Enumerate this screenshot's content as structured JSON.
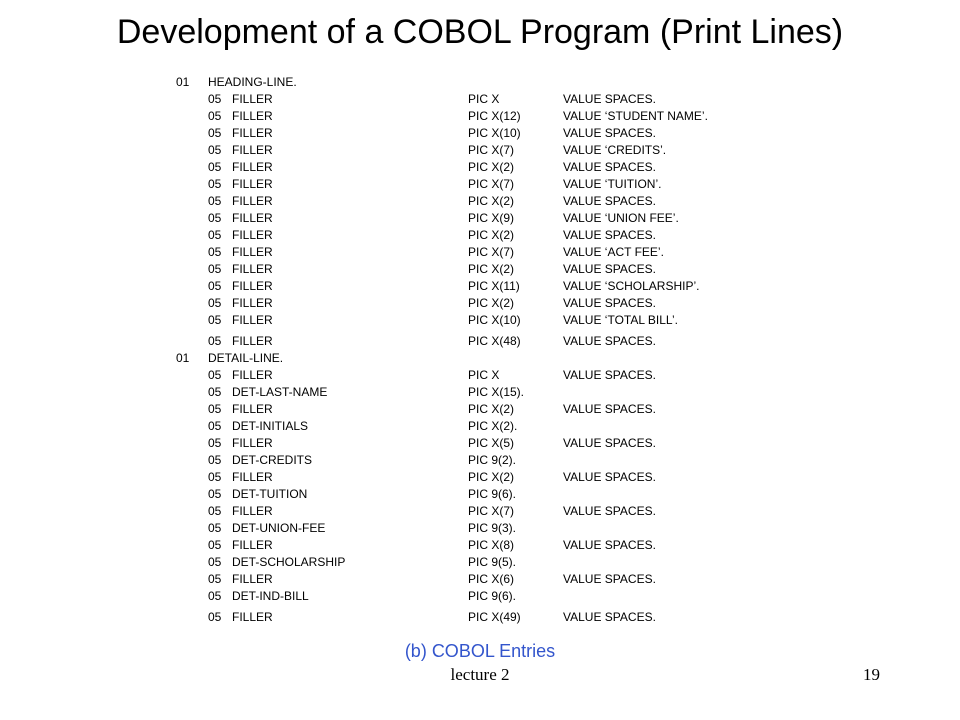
{
  "slide": {
    "title": "Development of a COBOL Program (Print Lines)",
    "caption": "(b) COBOL Entries",
    "footer_left": "lecture 2",
    "page_number": "19"
  },
  "heading_record": {
    "level": "01",
    "name": "HEADING-LINE.",
    "fields": [
      {
        "level": "05",
        "name": "FILLER",
        "pic": "PIC X",
        "value": "VALUE SPACES."
      },
      {
        "level": "05",
        "name": "FILLER",
        "pic": "PIC X(12)",
        "value": "VALUE ‘STUDENT NAME’."
      },
      {
        "level": "05",
        "name": "FILLER",
        "pic": "PIC X(10)",
        "value": "VALUE SPACES."
      },
      {
        "level": "05",
        "name": "FILLER",
        "pic": "PIC X(7)",
        "value": "VALUE ‘CREDITS’."
      },
      {
        "level": "05",
        "name": "FILLER",
        "pic": "PIC X(2)",
        "value": "VALUE SPACES."
      },
      {
        "level": "05",
        "name": "FILLER",
        "pic": "PIC X(7)",
        "value": "VALUE ‘TUITION’."
      },
      {
        "level": "05",
        "name": "FILLER",
        "pic": "PIC X(2)",
        "value": "VALUE SPACES."
      },
      {
        "level": "05",
        "name": "FILLER",
        "pic": "PIC X(9)",
        "value": "VALUE ‘UNION FEE’."
      },
      {
        "level": "05",
        "name": "FILLER",
        "pic": "PIC X(2)",
        "value": "VALUE SPACES."
      },
      {
        "level": "05",
        "name": "FILLER",
        "pic": "PIC X(7)",
        "value": "VALUE ‘ACT FEE’."
      },
      {
        "level": "05",
        "name": "FILLER",
        "pic": "PIC X(2)",
        "value": "VALUE SPACES."
      },
      {
        "level": "05",
        "name": "FILLER",
        "pic": "PIC X(11)",
        "value": "VALUE ‘SCHOLARSHIP’."
      },
      {
        "level": "05",
        "name": "FILLER",
        "pic": "PIC X(2)",
        "value": "VALUE SPACES."
      },
      {
        "level": "05",
        "name": "FILLER",
        "pic": "PIC X(10)",
        "value": "VALUE ‘TOTAL BILL’."
      },
      {
        "level": "05",
        "name": "FILLER",
        "pic": "PIC X(48)",
        "value": "VALUE SPACES."
      }
    ]
  },
  "detail_record": {
    "level": "01",
    "name": "DETAIL-LINE.",
    "fields": [
      {
        "level": "05",
        "name": "FILLER",
        "pic": "PIC X",
        "value": "VALUE SPACES."
      },
      {
        "level": "05",
        "name": "DET-LAST-NAME",
        "pic": "PIC X(15).",
        "value": ""
      },
      {
        "level": "05",
        "name": "FILLER",
        "pic": "PIC X(2)",
        "value": "VALUE SPACES."
      },
      {
        "level": "05",
        "name": "DET-INITIALS",
        "pic": "PIC X(2).",
        "value": ""
      },
      {
        "level": "05",
        "name": "FILLER",
        "pic": "PIC X(5)",
        "value": "VALUE SPACES."
      },
      {
        "level": "05",
        "name": "DET-CREDITS",
        "pic": "PIC 9(2).",
        "value": ""
      },
      {
        "level": "05",
        "name": "FILLER",
        "pic": "PIC X(2)",
        "value": "VALUE SPACES."
      },
      {
        "level": "05",
        "name": "DET-TUITION",
        "pic": "PIC 9(6).",
        "value": ""
      },
      {
        "level": "05",
        "name": "FILLER",
        "pic": "PIC X(7)",
        "value": "VALUE SPACES."
      },
      {
        "level": "05",
        "name": "DET-UNION-FEE",
        "pic": "PIC 9(3).",
        "value": ""
      },
      {
        "level": "05",
        "name": "FILLER",
        "pic": "PIC X(8)",
        "value": "VALUE SPACES."
      },
      {
        "level": "05",
        "name": "DET-SCHOLARSHIP",
        "pic": "PIC 9(5).",
        "value": ""
      },
      {
        "level": "05",
        "name": "FILLER",
        "pic": "PIC X(6)",
        "value": "VALUE SPACES."
      },
      {
        "level": "05",
        "name": "DET-IND-BILL",
        "pic": "PIC 9(6).",
        "value": ""
      },
      {
        "level": "05",
        "name": "FILLER",
        "pic": "PIC X(49)",
        "value": "VALUE SPACES."
      }
    ]
  }
}
